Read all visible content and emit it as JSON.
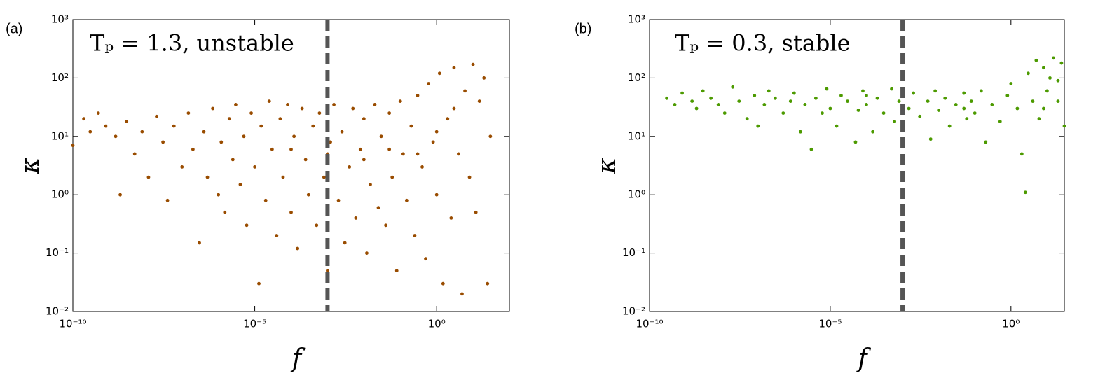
{
  "chart_data": [
    {
      "type": "scatter",
      "panel_label": "(a)",
      "annotation": "Tₚ = 1.3, unstable",
      "xlabel": "f",
      "ylabel": "κ",
      "log_x": true,
      "log_y": true,
      "color": "#994c00",
      "vline_x": 0.001,
      "vline_color": "#555555",
      "xlim": [
        1e-10,
        100
      ],
      "ylim": [
        0.01,
        1000
      ],
      "xticks": [
        {
          "value": 1e-10,
          "label": "10⁻¹⁰"
        },
        {
          "value": 1e-05,
          "label": "10⁻⁵"
        },
        {
          "value": 1,
          "label": "10⁰"
        }
      ],
      "yticks": [
        {
          "value": 0.01,
          "label": "10⁻²"
        },
        {
          "value": 0.1,
          "label": "10⁻¹"
        },
        {
          "value": 1,
          "label": "10⁰"
        },
        {
          "value": 10,
          "label": "10¹"
        },
        {
          "value": 100,
          "label": "10²"
        },
        {
          "value": 1000,
          "label": "10³"
        }
      ],
      "x": [
        1e-10,
        2e-10,
        3e-10,
        5e-10,
        8e-10,
        1.5e-09,
        2e-09,
        3e-09,
        5e-09,
        8e-09,
        1.2e-08,
        2e-08,
        3e-08,
        4e-08,
        6e-08,
        1e-07,
        1.5e-07,
        2e-07,
        3e-07,
        4e-07,
        5e-07,
        7e-07,
        1e-06,
        1.2e-06,
        1.5e-06,
        2e-06,
        2.5e-06,
        3e-06,
        4e-06,
        5e-06,
        6e-06,
        8e-06,
        1e-05,
        1.3e-05,
        1.5e-05,
        2e-05,
        2.5e-05,
        3e-05,
        4e-05,
        5e-05,
        6e-05,
        8e-05,
        0.0001,
        0.00012,
        0.00015,
        0.0002,
        0.00025,
        0.0003,
        0.0004,
        0.0005,
        0.0006,
        0.0008,
        0.001,
        0.0012,
        0.0015,
        0.002,
        0.0025,
        0.003,
        0.004,
        0.005,
        0.006,
        0.008,
        0.01,
        0.012,
        0.015,
        0.02,
        0.025,
        0.03,
        0.04,
        0.05,
        0.06,
        0.08,
        0.1,
        0.12,
        0.15,
        0.2,
        0.25,
        0.3,
        0.4,
        0.5,
        0.6,
        0.8,
        1,
        1.2,
        1.5,
        2,
        2.5,
        3,
        4,
        5,
        6,
        8,
        10,
        12,
        15,
        20,
        25,
        30,
        3,
        1,
        0.3,
        0.05,
        0.01,
        0.001,
        0.0001
      ],
      "y": [
        7,
        20,
        12,
        25,
        15,
        10,
        1,
        18,
        5,
        12,
        2,
        22,
        8,
        0.8,
        15,
        3,
        25,
        6,
        0.15,
        12,
        2,
        30,
        1,
        8,
        0.5,
        20,
        4,
        35,
        1.5,
        10,
        0.3,
        25,
        3,
        0.03,
        15,
        0.8,
        40,
        6,
        0.2,
        20,
        2,
        35,
        0.5,
        10,
        0.12,
        30,
        4,
        1,
        15,
        0.3,
        25,
        2,
        0.05,
        8,
        35,
        0.8,
        12,
        0.15,
        3,
        30,
        0.4,
        6,
        20,
        0.1,
        1.5,
        35,
        0.6,
        10,
        0.3,
        25,
        2,
        0.05,
        40,
        5,
        0.8,
        15,
        0.2,
        50,
        3,
        0.08,
        80,
        8,
        1,
        120,
        0.03,
        20,
        0.4,
        150,
        5,
        0.02,
        60,
        2,
        170,
        0.5,
        40,
        100,
        0.03,
        10,
        30,
        12,
        5,
        6,
        4,
        5,
        6
      ]
    },
    {
      "type": "scatter",
      "panel_label": "(b)",
      "annotation": "Tₚ = 0.3, stable",
      "xlabel": "f",
      "ylabel": "κ",
      "log_x": true,
      "log_y": true,
      "color": "#4c9a00",
      "vline_x": 0.001,
      "vline_color": "#555555",
      "xlim": [
        1e-10,
        30
      ],
      "ylim": [
        0.01,
        1000
      ],
      "xticks": [
        {
          "value": 1e-10,
          "label": "10⁻¹⁰"
        },
        {
          "value": 1e-05,
          "label": "10⁻⁵"
        },
        {
          "value": 1,
          "label": "10⁰"
        }
      ],
      "yticks": [
        {
          "value": 0.01,
          "label": "10⁻²"
        },
        {
          "value": 0.1,
          "label": "10⁻¹"
        },
        {
          "value": 1,
          "label": "10⁰"
        },
        {
          "value": 10,
          "label": "10¹"
        },
        {
          "value": 100,
          "label": "10²"
        },
        {
          "value": 1000,
          "label": "10³"
        }
      ],
      "x": [
        3e-10,
        5e-10,
        8e-10,
        1.5e-09,
        2e-09,
        3e-09,
        5e-09,
        8e-09,
        1.2e-08,
        2e-08,
        3e-08,
        5e-08,
        8e-08,
        1e-07,
        1.5e-07,
        2e-07,
        3e-07,
        5e-07,
        8e-07,
        1e-06,
        1.5e-06,
        2e-06,
        3e-06,
        4e-06,
        6e-06,
        8e-06,
        1e-05,
        1.5e-05,
        2e-05,
        3e-05,
        5e-05,
        6e-05,
        8e-05,
        0.0001,
        0.00015,
        0.0002,
        0.0003,
        0.0005,
        0.0006,
        0.0008,
        0.001,
        0.0015,
        0.002,
        0.003,
        0.005,
        0.006,
        0.008,
        0.01,
        0.015,
        0.02,
        0.03,
        0.05,
        0.06,
        0.08,
        0.1,
        0.15,
        0.2,
        0.3,
        0.5,
        0.8,
        1,
        1.5,
        2,
        2.5,
        3,
        4,
        5,
        6,
        8,
        10,
        12,
        15,
        20,
        25,
        30,
        20,
        8,
        0.05,
        0.0001
      ],
      "y": [
        45,
        35,
        55,
        40,
        30,
        60,
        45,
        35,
        25,
        70,
        40,
        20,
        50,
        15,
        35,
        60,
        45,
        25,
        40,
        55,
        12,
        35,
        6,
        45,
        25,
        65,
        30,
        15,
        50,
        40,
        8,
        28,
        60,
        35,
        12,
        45,
        25,
        65,
        18,
        40,
        14,
        30,
        55,
        22,
        40,
        9,
        60,
        28,
        45,
        15,
        35,
        55,
        20,
        40,
        25,
        60,
        8,
        35,
        18,
        50,
        80,
        30,
        5,
        1.1,
        120,
        40,
        200,
        20,
        150,
        60,
        100,
        220,
        90,
        180,
        15,
        40,
        30,
        30,
        50
      ]
    }
  ]
}
